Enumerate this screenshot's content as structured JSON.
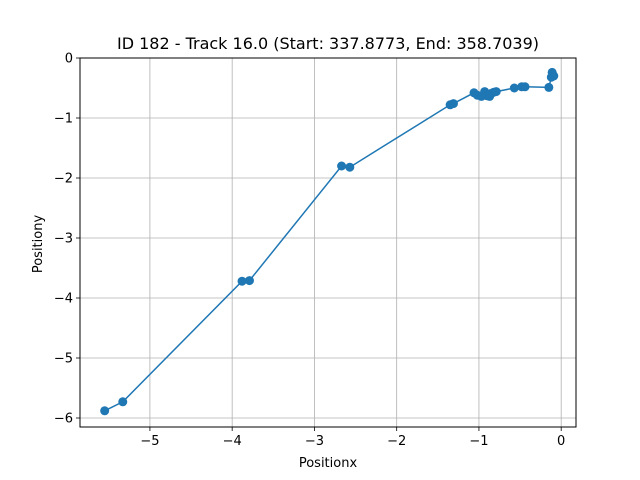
{
  "chart_data": {
    "type": "line",
    "title": "ID 182 - Track 16.0 (Start: 337.8773, End: 358.7039)",
    "xlabel": "Positionx",
    "ylabel": "Positiony",
    "xlim": [
      -5.85,
      0.18
    ],
    "ylim": [
      -6.15,
      0.0
    ],
    "xticks": [
      -5,
      -4,
      -3,
      -2,
      -1,
      0
    ],
    "xtick_labels": [
      "−5",
      "−4",
      "−3",
      "−2",
      "−1",
      "0"
    ],
    "yticks": [
      -6,
      -5,
      -4,
      -3,
      -2,
      -1,
      0
    ],
    "ytick_labels": [
      "−6",
      "−5",
      "−4",
      "−3",
      "−2",
      "−1",
      "0"
    ],
    "grid": true,
    "color": "#1f77b4",
    "series": [
      {
        "x": [
          -5.55,
          -5.33,
          -3.88,
          -3.79,
          -2.67,
          -2.57,
          -1.35,
          -1.31,
          -1.06,
          -1.02,
          -0.97,
          -0.93,
          -0.9,
          -0.87,
          -0.85,
          -0.82,
          -0.79,
          -0.57,
          -0.48,
          -0.44,
          -0.15,
          -0.12,
          -0.1,
          -0.09,
          -0.11
        ],
        "y": [
          -5.88,
          -5.73,
          -3.72,
          -3.71,
          -1.8,
          -1.82,
          -0.78,
          -0.76,
          -0.58,
          -0.62,
          -0.64,
          -0.56,
          -0.63,
          -0.64,
          -0.59,
          -0.57,
          -0.56,
          -0.5,
          -0.48,
          -0.48,
          -0.49,
          -0.32,
          -0.28,
          -0.3,
          -0.24
        ]
      }
    ]
  }
}
